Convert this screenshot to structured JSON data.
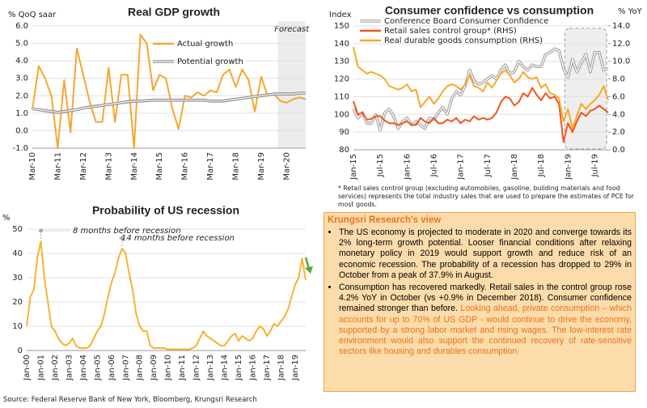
{
  "chart_data": [
    {
      "type": "line",
      "title": "Real GDP growth",
      "ylabel": "% QoQ saar",
      "annotations": [
        "Forecast"
      ],
      "legend": "upper center",
      "grid": true,
      "categories": [
        "Mar-10",
        null,
        null,
        null,
        "Mar-11",
        null,
        null,
        null,
        "Mar-12",
        null,
        null,
        null,
        "Mar-13",
        null,
        null,
        null,
        "Mar-14",
        null,
        null,
        null,
        "Mar-15",
        null,
        null,
        null,
        "Mar-16",
        null,
        null,
        null,
        "Mar-17",
        null,
        null,
        null,
        "Mar-18",
        null,
        null,
        null,
        "Mar-19",
        null,
        null,
        null,
        "Mar-20",
        null,
        null,
        null
      ],
      "ylim": [
        -1,
        6
      ],
      "yticks": [
        {
          "value": -1,
          "label": "-1.0"
        },
        {
          "value": 0,
          "label": "0.0"
        },
        {
          "value": 1,
          "label": "1.0"
        },
        {
          "value": 2,
          "label": "2.0"
        },
        {
          "value": 3,
          "label": "3.0"
        },
        {
          "value": 4,
          "label": "4.0"
        },
        {
          "value": 5,
          "label": "5.0"
        },
        {
          "value": 6,
          "label": "6.0"
        }
      ],
      "series": [
        {
          "name": "Actual growth",
          "color": "#f7a630",
          "values": [
            1.2,
            3.7,
            3.0,
            2.0,
            -1.0,
            2.9,
            -0.1,
            4.7,
            3.2,
            1.7,
            0.5,
            0.5,
            3.6,
            0.5,
            3.2,
            3.2,
            -1.0,
            5.5,
            5.0,
            2.3,
            3.2,
            3.0,
            1.3,
            0.1,
            2.0,
            1.9,
            2.2,
            2.0,
            2.3,
            2.2,
            3.2,
            3.5,
            2.5,
            3.5,
            2.9,
            1.1,
            3.1,
            2.0,
            2.1,
            1.7,
            1.6,
            1.8,
            1.9,
            1.8
          ]
        },
        {
          "name": "Potential growth",
          "color": "#8c8c8c",
          "style": "double",
          "values": [
            1.25,
            1.2,
            1.15,
            1.1,
            1.05,
            1.1,
            1.15,
            1.2,
            1.3,
            1.35,
            1.4,
            1.45,
            1.5,
            1.55,
            1.6,
            1.65,
            1.7,
            1.7,
            1.72,
            1.75,
            1.75,
            1.75,
            1.75,
            1.75,
            1.75,
            1.75,
            1.75,
            1.75,
            1.7,
            1.7,
            1.7,
            1.75,
            1.8,
            1.85,
            1.9,
            1.95,
            2.0,
            2.05,
            2.1,
            2.1,
            2.1,
            2.1,
            2.15,
            2.15
          ]
        }
      ]
    },
    {
      "type": "line",
      "title": "Consumer confidence vs consumption",
      "ylabel": "Index",
      "y2label": "% YoY",
      "legend": "upper left",
      "grid": true,
      "categories": [
        "Jan-15",
        null,
        null,
        null,
        null,
        null,
        "Jul-15",
        null,
        null,
        null,
        null,
        null,
        "Jan-16",
        null,
        null,
        null,
        null,
        null,
        "Jul-16",
        null,
        null,
        null,
        null,
        null,
        "Jan-17",
        null,
        null,
        null,
        null,
        null,
        "Jul-17",
        null,
        null,
        null,
        null,
        null,
        "Jan-18",
        null,
        null,
        null,
        null,
        null,
        "Jul-18",
        null,
        null,
        null,
        null,
        null,
        "Jan-19",
        null,
        null,
        null,
        null,
        null,
        "Jul-19",
        null,
        null,
        null
      ],
      "ylim": [
        80,
        150
      ],
      "yticks": [
        80,
        90,
        100,
        110,
        120,
        130,
        140,
        150
      ],
      "y2lim": [
        0,
        14
      ],
      "y2ticks": [
        {
          "value": 0,
          "label": "0.0"
        },
        {
          "value": 2,
          "label": "2.0"
        },
        {
          "value": 4,
          "label": "4.0"
        },
        {
          "value": 6,
          "label": "6.0"
        },
        {
          "value": 8,
          "label": "8.0"
        },
        {
          "value": 10,
          "label": "10.0"
        },
        {
          "value": 12,
          "label": "12.0"
        },
        {
          "value": 14,
          "label": "14.0"
        }
      ],
      "series": [
        {
          "name": "Conference Board Consumer Confidence",
          "color": "#a6a6a6",
          "style": "double",
          "values": [
            103,
            98,
            101,
            95,
            95,
            100,
            91,
            101,
            103,
            99,
            92,
            96,
            98,
            94,
            96,
            94,
            92,
            98,
            97,
            101,
            104,
            100,
            109,
            113,
            111,
            116,
            125,
            119,
            117,
            118,
            120,
            122,
            120,
            125,
            128,
            123,
            124,
            130,
            127,
            125,
            128,
            127,
            127,
            134,
            135,
            137,
            136,
            126,
            121,
            131,
            124,
            129,
            134,
            124,
            135,
            135,
            125,
            126
          ]
        },
        {
          "name": "Retail sales control group* (RHS)",
          "color": "#f2561d",
          "axis": "y2",
          "values": [
            5.5,
            4.0,
            4.2,
            3.4,
            3.5,
            3.8,
            3.8,
            3.3,
            3.0,
            3.0,
            2.8,
            3.0,
            3.2,
            2.8,
            2.8,
            3.6,
            3.2,
            3.0,
            3.6,
            3.0,
            3.0,
            3.4,
            3.2,
            3.6,
            3.0,
            3.4,
            3.2,
            3.8,
            3.4,
            3.6,
            3.4,
            3.6,
            4.2,
            5.4,
            6.0,
            5.8,
            5.0,
            5.4,
            6.4,
            6.0,
            7.0,
            6.2,
            5.6,
            6.4,
            5.8,
            6.0,
            5.2,
            0.9,
            3.0,
            2.0,
            3.2,
            4.2,
            3.8,
            4.4,
            4.6,
            5.0,
            4.6,
            4.2
          ]
        },
        {
          "name": "Real durable goods consumption (RHS)",
          "color": "#f9a825",
          "axis": "y2",
          "values": [
            11.6,
            9.4,
            9.0,
            8.6,
            8.8,
            8.6,
            8.4,
            8.0,
            7.2,
            7.0,
            6.8,
            7.0,
            7.4,
            6.6,
            6.8,
            4.8,
            5.4,
            6.0,
            5.2,
            5.8,
            6.6,
            7.2,
            7.4,
            7.2,
            6.8,
            7.4,
            8.4,
            7.2,
            7.0,
            6.6,
            7.6,
            7.0,
            7.8,
            8.6,
            9.0,
            8.4,
            7.6,
            8.0,
            8.8,
            8.2,
            8.0,
            8.2,
            7.0,
            7.4,
            6.4,
            6.2,
            5.8,
            3.2,
            4.6,
            2.4,
            3.8,
            5.2,
            4.6,
            5.2,
            5.6,
            6.2,
            7.2,
            5.6
          ]
        }
      ],
      "footnote": "* Retail sales control group (excluding automobiles, gasoline, building materials and food services) represents the total industry sales that are used to prepare the estimates of PCE for most goods."
    },
    {
      "type": "line",
      "title": "Probability of US recession",
      "ylabel": "%",
      "grid": true,
      "color": "#f9b233",
      "annotations": [
        "8 months before recession",
        "14 months before recession"
      ],
      "categories": [
        "Jan-00",
        null,
        null,
        null,
        "Jan-01",
        null,
        null,
        null,
        "Jan-02",
        null,
        null,
        null,
        "Jan-03",
        null,
        null,
        null,
        "Jan-04",
        null,
        null,
        null,
        "Jan-05",
        null,
        null,
        null,
        "Jan-06",
        null,
        null,
        null,
        "Jan-07",
        null,
        null,
        null,
        "Jan-08",
        null,
        null,
        null,
        "Jan-09",
        null,
        null,
        null,
        "Jan-10",
        null,
        null,
        null,
        "Jan-11",
        null,
        null,
        null,
        "Jan-12",
        null,
        null,
        null,
        "Jan-13",
        null,
        null,
        null,
        "Jan-14",
        null,
        null,
        null,
        "Jan-15",
        null,
        null,
        null,
        "Jan-16",
        null,
        null,
        null,
        "Jan-17",
        null,
        null,
        null,
        "Jan-18",
        null,
        null,
        null,
        "Jan-19",
        null,
        null,
        null
      ],
      "ylim": [
        0,
        50
      ],
      "yticks": [
        0,
        10,
        20,
        30,
        40,
        50
      ],
      "values": [
        10,
        22,
        25,
        38,
        45,
        30,
        20,
        10,
        8,
        5,
        3,
        2,
        3,
        5,
        2,
        1,
        1,
        1,
        2,
        5,
        8,
        10,
        15,
        22,
        28,
        32,
        38,
        42,
        40,
        32,
        25,
        15,
        10,
        8,
        8,
        2,
        1,
        1,
        1,
        1,
        0.5,
        0.5,
        0.5,
        0.5,
        0.5,
        0.5,
        0.5,
        1,
        2,
        5,
        8,
        6,
        5,
        4,
        3,
        2,
        2,
        4,
        6,
        7,
        4,
        6,
        5,
        4,
        5,
        8,
        10,
        9,
        6,
        8,
        11,
        10,
        12,
        14,
        17,
        22,
        27,
        30,
        37.9,
        29
      ]
    }
  ],
  "textbox": {
    "title": "Krungsri Research's view",
    "bullets": [
      [
        {
          "text": "The US economy is projected to moderate in 2020 and converge towards its 2% long-term growth potential. Looser financial conditions after relaxing monetary policy in 2019 would support growth and reduce risk of an economic recession. The probability of a recession has dropped to 29% in October from a peak of 37.9% in August."
        }
      ],
      [
        {
          "text": "Consumption has recovered markedly. Retail sales in the control group rose 4.2% YoY in October (vs +0.9% in December 2018). Consumer confidence remained stronger than before. "
        },
        {
          "text": "Looking ahead, private consumption – which accounts for up to 70% of US GDP - would continue to drive the economy, supported by a strong labor market and rising wages. The low-interest rate environment would also support the continued recovery of rate-sensitive sectors like housing and durables consumption.",
          "color": "#e8731c"
        }
      ]
    ]
  },
  "source": "Source: Federal Reserve Bank of New York, Bloomberg, Krungsri Research"
}
